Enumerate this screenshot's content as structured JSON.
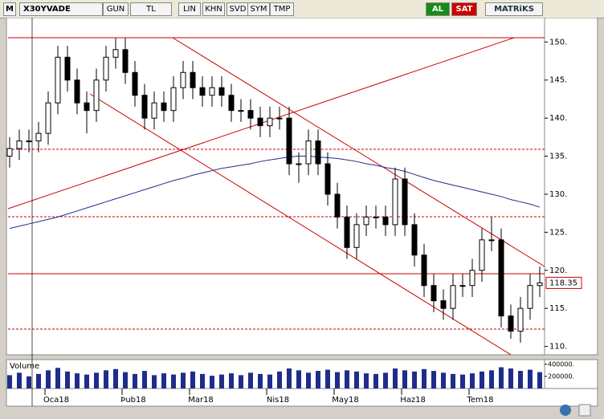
{
  "toolbar": {
    "logo": "M",
    "symbol": "X30YVADE",
    "buttons": [
      "GUN",
      "TL",
      "LIN",
      "KHN",
      "SVD",
      "SYM",
      "TMP"
    ],
    "buy": "AL",
    "sell": "SAT",
    "brand": "MATRiKS"
  },
  "chart_data": {
    "type": "candlestick",
    "categories": [
      null,
      null,
      null,
      null,
      "Oca18",
      null,
      null,
      null,
      null,
      null,
      null,
      null,
      "Þub18",
      null,
      null,
      null,
      null,
      null,
      null,
      "Mar18",
      null,
      null,
      null,
      null,
      null,
      null,
      null,
      "Nis18",
      null,
      null,
      null,
      null,
      null,
      null,
      "May18",
      null,
      null,
      null,
      null,
      null,
      null,
      "Haz18",
      null,
      null,
      null,
      null,
      null,
      null,
      "Tem18",
      null,
      null,
      null,
      null,
      null,
      null,
      null
    ],
    "open": [
      135,
      136,
      137,
      137,
      138,
      142,
      148,
      145,
      142,
      141,
      145,
      148,
      149,
      146,
      143,
      140,
      142,
      141,
      144,
      146,
      144,
      143,
      144,
      143,
      141,
      141,
      140,
      139,
      140,
      140,
      134,
      134,
      137,
      134,
      130,
      127,
      123,
      126,
      127,
      127,
      126,
      132,
      126,
      122,
      118,
      116,
      115,
      118,
      118,
      120,
      124,
      124,
      114,
      112,
      115,
      118
    ],
    "high": [
      137.5,
      138.5,
      138.5,
      139.5,
      143.5,
      149.5,
      149.5,
      146.5,
      143.5,
      146.5,
      149.5,
      150.5,
      150.5,
      147.5,
      144.5,
      143.5,
      143.5,
      145.5,
      147.5,
      147.5,
      145.5,
      145.5,
      145.5,
      144.5,
      142.5,
      142.5,
      141.5,
      141.5,
      141.5,
      141.5,
      135.5,
      138.5,
      138.5,
      135.5,
      131.5,
      128.5,
      127.5,
      128.5,
      128.5,
      128.5,
      133.5,
      133.5,
      127.5,
      123.5,
      119.5,
      117.5,
      119.5,
      119.5,
      121.5,
      125.5,
      127,
      125.5,
      115.5,
      116.5,
      119.5,
      120.5
    ],
    "low": [
      133.5,
      134.5,
      135.5,
      135.5,
      136.5,
      140.5,
      143.5,
      140.5,
      138,
      139.5,
      143.5,
      146.5,
      144.5,
      141.5,
      138.5,
      138.5,
      139.5,
      139.5,
      142.5,
      142.5,
      141.5,
      141.5,
      141.5,
      139.5,
      139.5,
      138.5,
      137.5,
      137.5,
      138.5,
      132.5,
      131.5,
      132.5,
      132.5,
      128.5,
      125.5,
      121.5,
      121.5,
      124.5,
      125.5,
      124.5,
      124.5,
      124.5,
      120.5,
      116.5,
      114.5,
      113.5,
      113.5,
      116.5,
      116.5,
      118.5,
      122.5,
      112.5,
      111,
      110.5,
      113.5,
      116.5
    ],
    "close": [
      136,
      137,
      137,
      138,
      142,
      148,
      145,
      142,
      141,
      145,
      148,
      149,
      146,
      143,
      140,
      142,
      141,
      144,
      146,
      144,
      143,
      144,
      143,
      141,
      141,
      140,
      139,
      140,
      140,
      134,
      134,
      137,
      134,
      130,
      127,
      123,
      126,
      127,
      127,
      126,
      132,
      126,
      122,
      118,
      116,
      115,
      118,
      118,
      120,
      124,
      124,
      114,
      112,
      115,
      118,
      118.35
    ],
    "ma": [
      125.5,
      125.8,
      126.1,
      126.4,
      126.7,
      127,
      127.4,
      127.8,
      128.2,
      128.6,
      129,
      129.4,
      129.8,
      130.2,
      130.6,
      131,
      131.4,
      131.8,
      132.1,
      132.5,
      132.8,
      133.1,
      133.4,
      133.6,
      133.8,
      134,
      134.3,
      134.5,
      134.7,
      134.9,
      135,
      135,
      134.9,
      134.8,
      134.7,
      134.5,
      134.3,
      134,
      133.8,
      133.5,
      133.3,
      133,
      132.6,
      132.2,
      131.8,
      131.5,
      131.2,
      130.9,
      130.6,
      130.3,
      130,
      129.7,
      129.3,
      129,
      128.7,
      128.3
    ],
    "ylim": [
      108.9,
      153.2
    ],
    "yticks": [
      {
        "value": 110,
        "label": "110."
      },
      {
        "value": 115,
        "label": "115."
      },
      {
        "value": 120,
        "label": "120."
      },
      {
        "value": 125,
        "label": "125."
      },
      {
        "value": 130,
        "label": "130."
      },
      {
        "value": 135,
        "label": "135."
      },
      {
        "value": 140,
        "label": "140."
      },
      {
        "value": 145,
        "label": "145."
      },
      {
        "value": 150,
        "label": "150."
      }
    ],
    "volume_label": "Volume",
    "volume": [
      220000,
      260000,
      200000,
      240000,
      300000,
      340000,
      280000,
      250000,
      230000,
      260000,
      300000,
      320000,
      270000,
      240000,
      290000,
      220000,
      250000,
      230000,
      260000,
      280000,
      240000,
      210000,
      230000,
      250000,
      220000,
      260000,
      240000,
      230000,
      280000,
      330000,
      300000,
      260000,
      290000,
      310000,
      270000,
      300000,
      280000,
      250000,
      240000,
      260000,
      330000,
      300000,
      280000,
      320000,
      290000,
      260000,
      240000,
      230000,
      250000,
      280000,
      300000,
      350000,
      330000,
      290000,
      310000,
      270000
    ],
    "vlim": [
      0,
      450000
    ],
    "vticks": [
      {
        "value": 200000,
        "label": "200000."
      },
      {
        "value": 400000,
        "label": "400000."
      }
    ]
  }
}
